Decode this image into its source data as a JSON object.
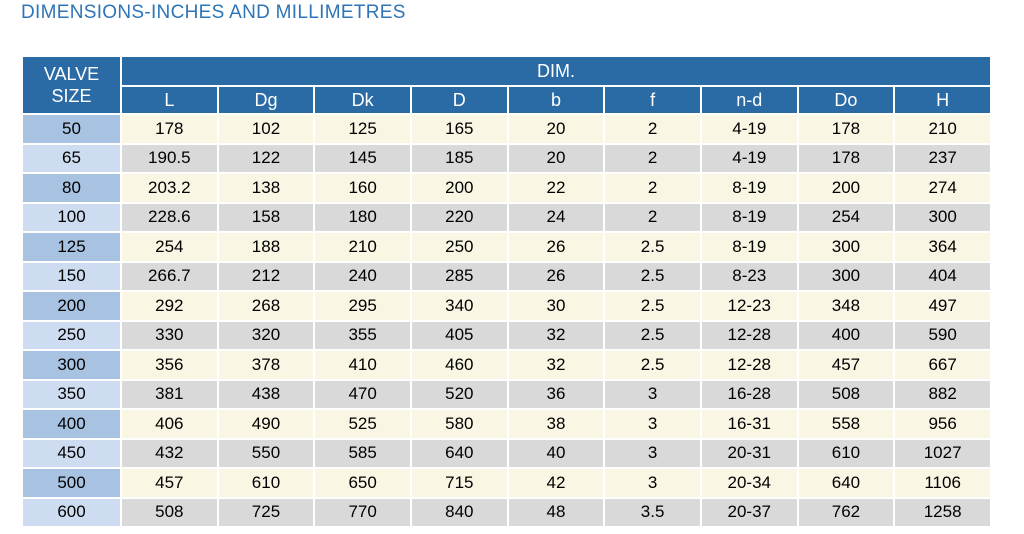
{
  "title": "DIMENSIONS-INCHES AND MILLIMETRES",
  "table": {
    "corner_header": "VALVE SIZE",
    "group_header": "DIM.",
    "columns": [
      "L",
      "Dg",
      "Dk",
      "D",
      "b",
      "f",
      "n-d",
      "Do",
      "H"
    ],
    "rows": [
      {
        "size": "50",
        "values": [
          "178",
          "102",
          "125",
          "165",
          "20",
          "2",
          "4-19",
          "178",
          "210"
        ]
      },
      {
        "size": "65",
        "values": [
          "190.5",
          "122",
          "145",
          "185",
          "20",
          "2",
          "4-19",
          "178",
          "237"
        ]
      },
      {
        "size": "80",
        "values": [
          "203.2",
          "138",
          "160",
          "200",
          "22",
          "2",
          "8-19",
          "200",
          "274"
        ]
      },
      {
        "size": "100",
        "values": [
          "228.6",
          "158",
          "180",
          "220",
          "24",
          "2",
          "8-19",
          "254",
          "300"
        ]
      },
      {
        "size": "125",
        "values": [
          "254",
          "188",
          "210",
          "250",
          "26",
          "2.5",
          "8-19",
          "300",
          "364"
        ]
      },
      {
        "size": "150",
        "values": [
          "266.7",
          "212",
          "240",
          "285",
          "26",
          "2.5",
          "8-23",
          "300",
          "404"
        ]
      },
      {
        "size": "200",
        "values": [
          "292",
          "268",
          "295",
          "340",
          "30",
          "2.5",
          "12-23",
          "348",
          "497"
        ]
      },
      {
        "size": "250",
        "values": [
          "330",
          "320",
          "355",
          "405",
          "32",
          "2.5",
          "12-28",
          "400",
          "590"
        ]
      },
      {
        "size": "300",
        "values": [
          "356",
          "378",
          "410",
          "460",
          "32",
          "2.5",
          "12-28",
          "457",
          "667"
        ]
      },
      {
        "size": "350",
        "values": [
          "381",
          "438",
          "470",
          "520",
          "36",
          "3",
          "16-28",
          "508",
          "882"
        ]
      },
      {
        "size": "400",
        "values": [
          "406",
          "490",
          "525",
          "580",
          "38",
          "3",
          "16-31",
          "558",
          "956"
        ]
      },
      {
        "size": "450",
        "values": [
          "432",
          "550",
          "585",
          "640",
          "40",
          "3",
          "20-31",
          "610",
          "1027"
        ]
      },
      {
        "size": "500",
        "values": [
          "457",
          "610",
          "650",
          "715",
          "42",
          "3",
          "20-34",
          "640",
          "1106"
        ]
      },
      {
        "size": "600",
        "values": [
          "508",
          "725",
          "770",
          "840",
          "48",
          "3.5",
          "20-37",
          "762",
          "1258"
        ]
      }
    ]
  },
  "colors": {
    "header_bg": "#2a6ba5",
    "header_text": "#ffffff",
    "title_text": "#2e74b6",
    "row_light_bg": "#faf6e4",
    "row_dark_bg": "#d9d9d9",
    "size_col_dark": "#a8c3e2",
    "size_col_light": "#cddcf1",
    "cell_text": "#000000",
    "grid": "#ffffff"
  }
}
